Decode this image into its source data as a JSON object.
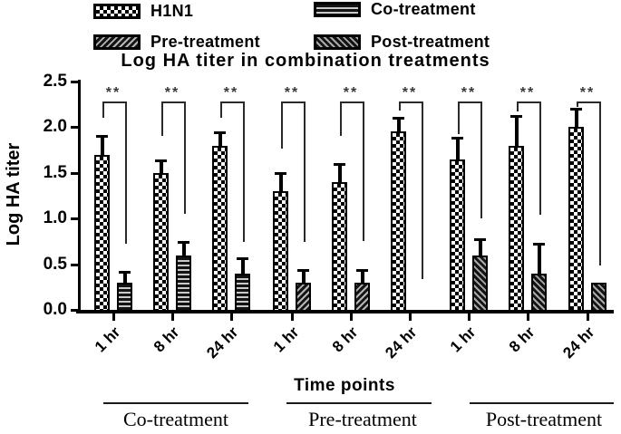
{
  "title": "Log HA titer in combination treatments",
  "legend": {
    "items": [
      {
        "label": "H1N1",
        "pattern": "checker"
      },
      {
        "label": "Co-treatment",
        "pattern": "hstripes"
      },
      {
        "label": "Pre-treatment",
        "pattern": "diag-fwd"
      },
      {
        "label": "Post-treatment",
        "pattern": "diag-back"
      }
    ]
  },
  "y_axis": {
    "label": "Log HA titer",
    "ticks": [
      "0.0",
      "0.5",
      "1.0",
      "1.5",
      "2.0",
      "2.5"
    ]
  },
  "x_axis": {
    "label": "Time points",
    "group_labels": [
      "Co-treatment",
      "Pre-treatment",
      "Post-treatment"
    ]
  },
  "colors": {
    "bar_fill": "#000000",
    "pattern_light": "#ffffff",
    "stripe_gray": "#b5b5b5",
    "axis": "#000000",
    "sig": "#3a3a3a"
  },
  "chart_data": {
    "type": "bar",
    "title": "Log HA titer in combination treatments",
    "xlabel": "Time points",
    "ylabel": "Log HA titer",
    "ylim": [
      0,
      2.5
    ],
    "y_tick_step": 0.5,
    "grid": false,
    "legend_position": "top",
    "series_names": [
      "H1N1",
      "Co-treatment",
      "Pre-treatment",
      "Post-treatment"
    ],
    "time_points": [
      "1 hr",
      "8 hr",
      "24 hr"
    ],
    "significance_bracket_top": 2.28,
    "groups": [
      {
        "name": "Co-treatment",
        "pairs": [
          {
            "time": "1 hr",
            "h1n1": 1.7,
            "h1n1_err": 0.18,
            "treatment": 0.3,
            "treatment_err": 0.1,
            "sig": "**",
            "bracket_left_to": 2.1,
            "bracket_right_to": 0.72
          },
          {
            "time": "8 hr",
            "h1n1": 1.5,
            "h1n1_err": 0.12,
            "treatment": 0.6,
            "treatment_err": 0.12,
            "sig": "**",
            "bracket_left_to": 1.9,
            "bracket_right_to": 1.05
          },
          {
            "time": "24 hr",
            "h1n1": 1.8,
            "h1n1_err": 0.12,
            "treatment": 0.4,
            "treatment_err": 0.15,
            "sig": "**",
            "bracket_left_to": 2.1,
            "bracket_right_to": 0.74
          }
        ]
      },
      {
        "name": "Pre-treatment",
        "pairs": [
          {
            "time": "1 hr",
            "h1n1": 1.3,
            "h1n1_err": 0.18,
            "treatment": 0.3,
            "treatment_err": 0.12,
            "sig": "**",
            "bracket_left_to": 1.77,
            "bracket_right_to": 0.74
          },
          {
            "time": "8 hr",
            "h1n1": 1.4,
            "h1n1_err": 0.18,
            "treatment": 0.3,
            "treatment_err": 0.12,
            "sig": "**",
            "bracket_left_to": 1.9,
            "bracket_right_to": 0.75
          },
          {
            "time": "24 hr",
            "h1n1": 1.95,
            "h1n1_err": 0.13,
            "treatment": 0.0,
            "treatment_err": 0.0,
            "sig": "**",
            "bracket_left_to": 2.18,
            "bracket_right_to": 0.34
          }
        ]
      },
      {
        "name": "Post-treatment",
        "pairs": [
          {
            "time": "1 hr",
            "h1n1": 1.65,
            "h1n1_err": 0.22,
            "treatment": 0.6,
            "treatment_err": 0.15,
            "sig": "**",
            "bracket_left_to": 1.92,
            "bracket_right_to": 1.0
          },
          {
            "time": "8 hr",
            "h1n1": 1.8,
            "h1n1_err": 0.3,
            "treatment": 0.4,
            "treatment_err": 0.3,
            "sig": "**",
            "bracket_left_to": 2.17,
            "bracket_right_to": 1.04
          },
          {
            "time": "24 hr",
            "h1n1": 2.0,
            "h1n1_err": 0.18,
            "treatment": 0.3,
            "treatment_err": 0.0,
            "sig": "**",
            "bracket_left_to": 2.22,
            "bracket_right_to": 0.49
          }
        ]
      }
    ]
  }
}
